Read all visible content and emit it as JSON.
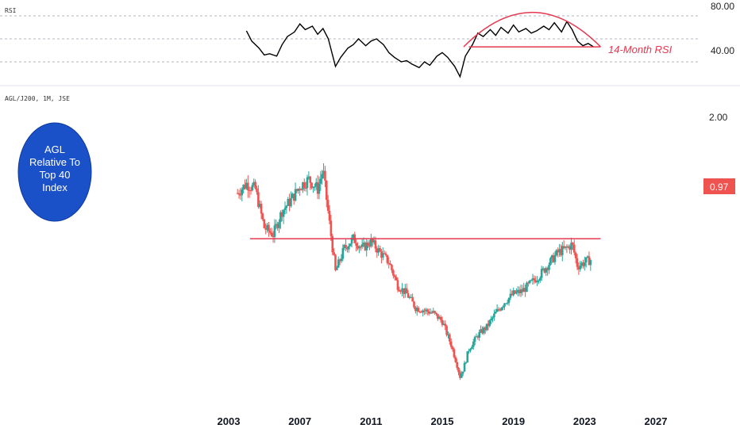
{
  "rsi_pane": {
    "label": "RSI",
    "annotation": "14-Month RSI",
    "y_ticks": [
      "80.00",
      "40.00"
    ]
  },
  "price_pane": {
    "symbol_label": "AGL/J200, 1M, JSE",
    "y_tick_top": "2.00",
    "last_price": "0.97",
    "circle_text": [
      "AGL",
      "Relative To",
      "Top 40",
      "Index"
    ]
  },
  "colors": {
    "up": "#26a69a",
    "down": "#ef5350",
    "annotation_red": "#e53950",
    "price_tag": "#ef5350",
    "circle_blue": "#1a50c8",
    "rsi_line": "#000000"
  },
  "chart_data": [
    {
      "type": "line",
      "title": "RSI",
      "series": [
        {
          "values": [
            [
              2004.0,
              67
            ],
            [
              2004.3,
              58
            ],
            [
              2004.7,
              52
            ],
            [
              2005.0,
              46
            ],
            [
              2005.3,
              47
            ],
            [
              2005.7,
              45
            ],
            [
              2006.0,
              55
            ],
            [
              2006.3,
              62
            ],
            [
              2006.7,
              66
            ],
            [
              2007.0,
              73
            ],
            [
              2007.3,
              68
            ],
            [
              2007.7,
              71
            ],
            [
              2008.0,
              64
            ],
            [
              2008.3,
              69
            ],
            [
              2008.6,
              60
            ],
            [
              2009.0,
              36
            ],
            [
              2009.3,
              44
            ],
            [
              2009.7,
              52
            ],
            [
              2010.0,
              55
            ],
            [
              2010.3,
              60
            ],
            [
              2010.7,
              54
            ],
            [
              2011.0,
              58
            ],
            [
              2011.3,
              60
            ],
            [
              2011.7,
              55
            ],
            [
              2012.0,
              48
            ],
            [
              2012.3,
              44
            ],
            [
              2012.7,
              40
            ],
            [
              2013.0,
              41
            ],
            [
              2013.3,
              38
            ],
            [
              2013.7,
              35
            ],
            [
              2014.0,
              40
            ],
            [
              2014.3,
              37
            ],
            [
              2014.7,
              45
            ],
            [
              2015.0,
              48
            ],
            [
              2015.3,
              44
            ],
            [
              2015.7,
              36
            ],
            [
              2016.0,
              27
            ],
            [
              2016.3,
              45
            ],
            [
              2016.7,
              55
            ],
            [
              2017.0,
              65
            ],
            [
              2017.3,
              62
            ],
            [
              2017.7,
              68
            ],
            [
              2018.0,
              63
            ],
            [
              2018.3,
              70
            ],
            [
              2018.7,
              65
            ],
            [
              2019.0,
              72
            ],
            [
              2019.3,
              66
            ],
            [
              2019.7,
              69
            ],
            [
              2020.0,
              65
            ],
            [
              2020.3,
              67
            ],
            [
              2020.7,
              71
            ],
            [
              2021.0,
              68
            ],
            [
              2021.3,
              74
            ],
            [
              2021.7,
              66
            ],
            [
              2022.0,
              75
            ],
            [
              2022.3,
              68
            ],
            [
              2022.6,
              58
            ],
            [
              2022.9,
              54
            ],
            [
              2023.2,
              56
            ],
            [
              2023.5,
              53
            ]
          ]
        }
      ],
      "y_ticks": [
        80,
        40
      ],
      "annotations": {
        "support_line": {
          "x_start": 2016.5,
          "x_end": 2023.9,
          "y": 53
        },
        "arc": {
          "x_start": 2016.2,
          "x_end": 2023.9,
          "y_base": 53,
          "y_peak": 83
        }
      }
    },
    {
      "type": "candlestick",
      "title": "AGL/J200, 1M, JSE",
      "x_ticks": [
        "2003",
        "2007",
        "2011",
        "2015",
        "2019",
        "2023",
        "2027"
      ],
      "y_ticks": [
        "2.00"
      ],
      "last_value": 0.97,
      "series": [
        {
          "name": "AGL/J200",
          "values": [
            [
              2003.5,
              1.45
            ],
            [
              2004.0,
              1.52
            ],
            [
              2004.5,
              1.48
            ],
            [
              2005.0,
              1.2
            ],
            [
              2005.5,
              1.15
            ],
            [
              2006.0,
              1.32
            ],
            [
              2006.5,
              1.4
            ],
            [
              2007.0,
              1.5
            ],
            [
              2007.5,
              1.55
            ],
            [
              2008.0,
              1.48
            ],
            [
              2008.3,
              1.62
            ],
            [
              2008.6,
              1.3
            ],
            [
              2009.0,
              0.88
            ],
            [
              2009.5,
              1.05
            ],
            [
              2010.0,
              1.12
            ],
            [
              2010.5,
              1.05
            ],
            [
              2011.0,
              1.1
            ],
            [
              2011.5,
              1.02
            ],
            [
              2012.0,
              0.95
            ],
            [
              2012.5,
              0.78
            ],
            [
              2013.0,
              0.72
            ],
            [
              2013.5,
              0.62
            ],
            [
              2014.0,
              0.6
            ],
            [
              2014.5,
              0.58
            ],
            [
              2015.0,
              0.52
            ],
            [
              2015.5,
              0.35
            ],
            [
              2015.8,
              0.22
            ],
            [
              2016.0,
              0.12
            ],
            [
              2016.2,
              0.18
            ],
            [
              2016.5,
              0.32
            ],
            [
              2017.0,
              0.42
            ],
            [
              2017.5,
              0.48
            ],
            [
              2018.0,
              0.58
            ],
            [
              2018.5,
              0.66
            ],
            [
              2019.0,
              0.72
            ],
            [
              2019.5,
              0.74
            ],
            [
              2020.0,
              0.8
            ],
            [
              2020.5,
              0.86
            ],
            [
              2021.0,
              0.94
            ],
            [
              2021.5,
              1.02
            ],
            [
              2022.0,
              1.05
            ],
            [
              2022.3,
              1.08
            ],
            [
              2022.6,
              0.92
            ],
            [
              2023.0,
              0.95
            ],
            [
              2023.4,
              0.97
            ]
          ]
        }
      ],
      "annotations": {
        "resistance_line": {
          "x_start": 2004.2,
          "x_end": 2023.9,
          "y": 1.12
        }
      }
    }
  ]
}
